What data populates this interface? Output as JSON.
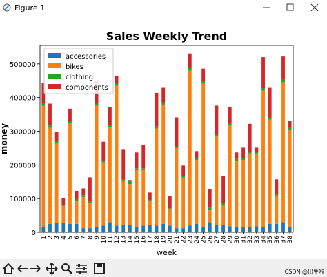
{
  "window": {
    "title": "Figure 1"
  },
  "watermark": "CSDN @出生啦",
  "chart_data": {
    "type": "stacked-bar",
    "title": "Sales Weekly Trend",
    "x_label": "week",
    "y_label": "money",
    "categories": [
      "1",
      "2",
      "3",
      "4",
      "5",
      "6",
      "7",
      "8",
      "9",
      "10",
      "11",
      "12",
      "13",
      "14",
      "15",
      "16",
      "17",
      "18",
      "19",
      "20",
      "21",
      "22",
      "23",
      "24",
      "25",
      "26",
      "27",
      "28",
      "29",
      "30",
      "31",
      "32",
      "33",
      "34",
      "35",
      "36",
      "37",
      "38"
    ],
    "series": [
      {
        "name": "accessories",
        "color": "#1f77b4",
        "values": [
          15000,
          25000,
          28000,
          28000,
          25000,
          25000,
          12000,
          12000,
          15000,
          20000,
          30000,
          20000,
          22000,
          22000,
          15000,
          20000,
          22000,
          20000,
          25000,
          20000,
          12000,
          12000,
          20000,
          25000,
          15000,
          30000,
          22000,
          22000,
          18000,
          15000,
          15000,
          15000,
          18000,
          15000,
          25000,
          25000,
          30000,
          15000
        ]
      },
      {
        "name": "bikes",
        "color": "#ff7f0e",
        "values": [
          360000,
          285000,
          238000,
          50000,
          298000,
          67000,
          92000,
          76000,
          360000,
          188000,
          281000,
          415000,
          130000,
          121000,
          170000,
          165000,
          70000,
          288000,
          354000,
          48000,
          238000,
          150000,
          460000,
          190000,
          426000,
          35000,
          262000,
          57000,
          300000,
          197000,
          200000,
          219000,
          216000,
          406000,
          310000,
          83000,
          415000,
          290000
        ]
      },
      {
        "name": "clothing",
        "color": "#2ca02c",
        "values": [
          8000,
          7000,
          6000,
          4000,
          7000,
          5000,
          6000,
          4000,
          7000,
          6000,
          7000,
          8000,
          5000,
          10000,
          5000,
          5000,
          4000,
          6000,
          7000,
          3000,
          5000,
          5000,
          8000,
          5000,
          8000,
          8000,
          8000,
          7000,
          6000,
          6000,
          5000,
          5000,
          5000,
          8000,
          6000,
          4000,
          8000,
          8000
        ]
      },
      {
        "name": "components",
        "color": "#d62728",
        "values": [
          60000,
          65000,
          26000,
          20000,
          37000,
          26000,
          20000,
          71000,
          67000,
          55000,
          53000,
          22000,
          90000,
          2000,
          47000,
          69000,
          22000,
          100000,
          45000,
          37000,
          86000,
          31000,
          43000,
          21000,
          37000,
          56000,
          84000,
          81000,
          47000,
          19000,
          31000,
          83000,
          12000,
          91000,
          90000,
          45000,
          71000,
          18000
        ]
      }
    ],
    "ylim": [
      0,
      555000
    ],
    "yticks": [
      0,
      100000,
      200000,
      300000,
      400000,
      500000
    ],
    "grid": false,
    "legend": "upper-left"
  }
}
